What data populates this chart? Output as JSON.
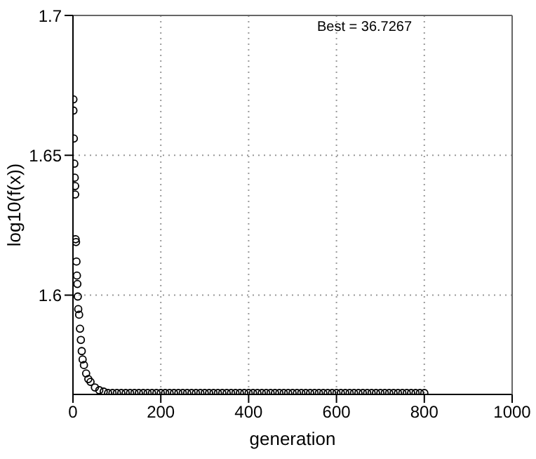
{
  "chart_data": {
    "type": "scatter",
    "xlabel": "generation",
    "ylabel": "log10(f(x))",
    "annotations": [
      "Best = 36.7267"
    ],
    "x": [
      1,
      1,
      2,
      3,
      4,
      5,
      5,
      6,
      7,
      8,
      9,
      10,
      11,
      12,
      14,
      16,
      18,
      20,
      22,
      25,
      30,
      35,
      40,
      50,
      60,
      70,
      80,
      90,
      100,
      110,
      120,
      130,
      140,
      150,
      160,
      170,
      180,
      190,
      200,
      210,
      220,
      230,
      240,
      250,
      260,
      270,
      280,
      290,
      300,
      310,
      320,
      330,
      340,
      350,
      360,
      370,
      380,
      390,
      400,
      410,
      420,
      430,
      440,
      450,
      460,
      470,
      480,
      490,
      500,
      510,
      520,
      530,
      540,
      550,
      560,
      570,
      580,
      590,
      600,
      610,
      620,
      630,
      640,
      650,
      660,
      670,
      680,
      690,
      700,
      710,
      720,
      730,
      740,
      750,
      760,
      770,
      780,
      790,
      800
    ],
    "series": [
      {
        "color": "#000000",
        "values": [
          1.67,
          1.666,
          1.656,
          1.647,
          1.642,
          1.639,
          1.636,
          1.62,
          1.619,
          1.612,
          1.607,
          1.604,
          1.5995,
          1.595,
          1.593,
          1.588,
          1.584,
          1.58,
          1.577,
          1.575,
          1.572,
          1.57,
          1.569,
          1.567,
          1.566,
          1.5655,
          1.565,
          1.565,
          1.565,
          1.565,
          1.565,
          1.565,
          1.565,
          1.565,
          1.565,
          1.565,
          1.565,
          1.565,
          1.565,
          1.565,
          1.565,
          1.565,
          1.565,
          1.565,
          1.565,
          1.565,
          1.565,
          1.565,
          1.565,
          1.565,
          1.565,
          1.565,
          1.565,
          1.565,
          1.565,
          1.565,
          1.565,
          1.565,
          1.565,
          1.565,
          1.565,
          1.565,
          1.565,
          1.565,
          1.565,
          1.565,
          1.565,
          1.565,
          1.565,
          1.565,
          1.565,
          1.565,
          1.565,
          1.565,
          1.565,
          1.565,
          1.565,
          1.565,
          1.565,
          1.565,
          1.565,
          1.565,
          1.565,
          1.565,
          1.565,
          1.565,
          1.565,
          1.565,
          1.565,
          1.565,
          1.565,
          1.565,
          1.565,
          1.565,
          1.565,
          1.565,
          1.565,
          1.565,
          1.565
        ]
      }
    ],
    "xlim": [
      0,
      1000
    ],
    "xticks": [
      0,
      200,
      400,
      600,
      800,
      1000
    ],
    "ylim": [
      1.5645,
      1.7
    ],
    "yticks": [
      1.6,
      1.65,
      1.7
    ],
    "grid": true,
    "marker": "circle"
  }
}
